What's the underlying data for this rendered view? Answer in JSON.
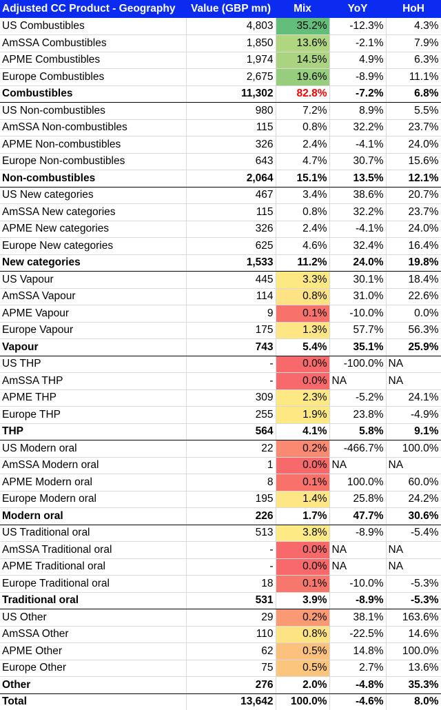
{
  "header": {
    "name": "Adjusted CC Product - Geography",
    "value": "Value (GBP mn)",
    "mix": "Mix",
    "yoy": "YoY",
    "hoh": "HoH"
  },
  "rows": [
    {
      "name": "US Combustibles",
      "value": "4,803",
      "mix": "35.2%",
      "yoy": "-12.3%",
      "hoh": "4.3%",
      "mix_color": "#63be7b",
      "total": false
    },
    {
      "name": "AmSSA Combustibles",
      "value": "1,850",
      "mix": "13.6%",
      "yoy": "-2.1%",
      "hoh": "7.9%",
      "mix_color": "#b0d67f",
      "total": false
    },
    {
      "name": "APME Combustibles",
      "value": "1,974",
      "mix": "14.5%",
      "yoy": "4.9%",
      "hoh": "6.3%",
      "mix_color": "#aad47f",
      "total": false
    },
    {
      "name": "Europe Combustibles",
      "value": "2,675",
      "mix": "19.6%",
      "yoy": "-8.9%",
      "hoh": "11.1%",
      "mix_color": "#96ce7e",
      "total": false
    },
    {
      "name": "Combustibles",
      "value": "11,302",
      "mix": "82.8%",
      "yoy": "-7.2%",
      "hoh": "6.8%",
      "mix_color": "",
      "mix_text_color": "#ff0000",
      "total": true
    },
    {
      "name": "US Non-combustibles",
      "value": "980",
      "mix": "7.2%",
      "yoy": "8.9%",
      "hoh": "5.5%",
      "mix_color": "",
      "total": false
    },
    {
      "name": "AmSSA Non-combustibles",
      "value": "115",
      "mix": "0.8%",
      "yoy": "32.2%",
      "hoh": "23.7%",
      "mix_color": "",
      "total": false
    },
    {
      "name": "APME Non-combustibles",
      "value": "326",
      "mix": "2.4%",
      "yoy": "-4.1%",
      "hoh": "24.0%",
      "mix_color": "",
      "total": false
    },
    {
      "name": "Europe Non-combustibles",
      "value": "643",
      "mix": "4.7%",
      "yoy": "30.7%",
      "hoh": "15.6%",
      "mix_color": "",
      "total": false
    },
    {
      "name": "Non-combustibles",
      "value": "2,064",
      "mix": "15.1%",
      "yoy": "13.5%",
      "hoh": "12.1%",
      "mix_color": "",
      "total": true
    },
    {
      "name": "US New categories",
      "value": "467",
      "mix": "3.4%",
      "yoy": "38.6%",
      "hoh": "20.7%",
      "mix_color": "",
      "total": false
    },
    {
      "name": "AmSSA New categories",
      "value": "115",
      "mix": "0.8%",
      "yoy": "32.2%",
      "hoh": "23.7%",
      "mix_color": "",
      "total": false
    },
    {
      "name": "APME New categories",
      "value": "326",
      "mix": "2.4%",
      "yoy": "-4.1%",
      "hoh": "24.0%",
      "mix_color": "",
      "total": false
    },
    {
      "name": "Europe New categories",
      "value": "625",
      "mix": "4.6%",
      "yoy": "32.4%",
      "hoh": "16.4%",
      "mix_color": "",
      "total": false
    },
    {
      "name": "New categories",
      "value": "1,533",
      "mix": "11.2%",
      "yoy": "24.0%",
      "hoh": "19.8%",
      "mix_color": "",
      "total": true
    },
    {
      "name": "US Vapour",
      "value": "445",
      "mix": "3.3%",
      "yoy": "30.1%",
      "hoh": "18.4%",
      "mix_color": "#fde983",
      "total": false
    },
    {
      "name": "AmSSA Vapour",
      "value": "114",
      "mix": "0.8%",
      "yoy": "31.0%",
      "hoh": "22.6%",
      "mix_color": "#fde383",
      "total": false
    },
    {
      "name": "APME Vapour",
      "value": "9",
      "mix": "0.1%",
      "yoy": "-10.0%",
      "hoh": "0.0%",
      "mix_color": "#f8716b",
      "total": false
    },
    {
      "name": "Europe Vapour",
      "value": "175",
      "mix": "1.3%",
      "yoy": "57.7%",
      "hoh": "56.3%",
      "mix_color": "#fde683",
      "total": false
    },
    {
      "name": "Vapour",
      "value": "743",
      "mix": "5.4%",
      "yoy": "35.1%",
      "hoh": "25.9%",
      "mix_color": "",
      "total": true
    },
    {
      "name": "US THP",
      "value": "-",
      "mix": "0.0%",
      "yoy": "-100.0%",
      "hoh": "NA",
      "mix_color": "#f8696b",
      "total": false
    },
    {
      "name": "AmSSA THP",
      "value": "-",
      "mix": "0.0%",
      "yoy": "NA",
      "hoh": "NA",
      "mix_color": "#f8696b",
      "total": false
    },
    {
      "name": "APME THP",
      "value": "309",
      "mix": "2.3%",
      "yoy": "-5.2%",
      "hoh": "24.1%",
      "mix_color": "#fde983",
      "total": false
    },
    {
      "name": "Europe THP",
      "value": "255",
      "mix": "1.9%",
      "yoy": "23.8%",
      "hoh": "-4.9%",
      "mix_color": "#fde883",
      "total": false
    },
    {
      "name": "THP",
      "value": "564",
      "mix": "4.1%",
      "yoy": "5.8%",
      "hoh": "9.1%",
      "mix_color": "",
      "total": true
    },
    {
      "name": "US Modern oral",
      "value": "22",
      "mix": "0.2%",
      "yoy": "-466.7%",
      "hoh": "100.0%",
      "mix_color": "#f98a71",
      "total": false
    },
    {
      "name": "AmSSA Modern oral",
      "value": "1",
      "mix": "0.0%",
      "yoy": "NA",
      "hoh": "NA",
      "mix_color": "#f8696b",
      "total": false
    },
    {
      "name": "APME Modern oral",
      "value": "8",
      "mix": "0.1%",
      "yoy": "100.0%",
      "hoh": "60.0%",
      "mix_color": "#f8716b",
      "total": false
    },
    {
      "name": "Europe Modern oral",
      "value": "195",
      "mix": "1.4%",
      "yoy": "25.8%",
      "hoh": "24.2%",
      "mix_color": "#fde683",
      "total": false
    },
    {
      "name": "Modern oral",
      "value": "226",
      "mix": "1.7%",
      "yoy": "47.7%",
      "hoh": "30.6%",
      "mix_color": "",
      "total": true
    },
    {
      "name": "US Traditional oral",
      "value": "513",
      "mix": "3.8%",
      "yoy": "-8.9%",
      "hoh": "-5.4%",
      "mix_color": "#fdea84",
      "total": false
    },
    {
      "name": "AmSSA Traditional oral",
      "value": "-",
      "mix": "0.0%",
      "yoy": "NA",
      "hoh": "NA",
      "mix_color": "#f8696b",
      "total": false
    },
    {
      "name": "APME Traditional oral",
      "value": "-",
      "mix": "0.0%",
      "yoy": "NA",
      "hoh": "NA",
      "mix_color": "#f8696b",
      "total": false
    },
    {
      "name": "Europe Traditional oral",
      "value": "18",
      "mix": "0.1%",
      "yoy": "-10.0%",
      "hoh": "-5.3%",
      "mix_color": "#f8776d",
      "total": false
    },
    {
      "name": "Traditional oral",
      "value": "531",
      "mix": "3.9%",
      "yoy": "-8.9%",
      "hoh": "-5.3%",
      "mix_color": "",
      "total": true
    },
    {
      "name": "US Other",
      "value": "29",
      "mix": "0.2%",
      "yoy": "38.1%",
      "hoh": "163.6%",
      "mix_color": "#fa9a75",
      "total": false
    },
    {
      "name": "AmSSA Other",
      "value": "110",
      "mix": "0.8%",
      "yoy": "-22.5%",
      "hoh": "14.6%",
      "mix_color": "#fee382",
      "total": false
    },
    {
      "name": "APME Other",
      "value": "62",
      "mix": "0.5%",
      "yoy": "14.8%",
      "hoh": "100.0%",
      "mix_color": "#fcc17c",
      "total": false
    },
    {
      "name": "Europe Other",
      "value": "75",
      "mix": "0.5%",
      "yoy": "2.7%",
      "hoh": "13.6%",
      "mix_color": "#fcc57d",
      "total": false
    },
    {
      "name": "Other",
      "value": "276",
      "mix": "2.0%",
      "yoy": "-4.8%",
      "hoh": "35.3%",
      "mix_color": "",
      "total": true
    },
    {
      "name": "Total",
      "value": "13,642",
      "mix": "100.0%",
      "yoy": "-4.6%",
      "hoh": "8.0%",
      "mix_color": "",
      "total": true,
      "grand": true
    }
  ]
}
